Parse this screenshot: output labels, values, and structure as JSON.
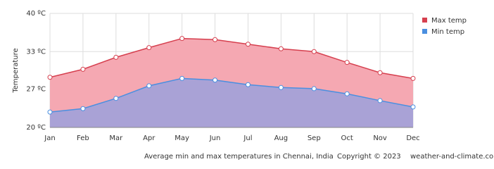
{
  "chart_data": {
    "type": "area",
    "y_label": "Temperature",
    "caption": "Average min and max temperatures in Chennai, India",
    "copyright": "Copyright © 2023",
    "source": "weather-and-climate.com",
    "categories": [
      "Jan",
      "Feb",
      "Mar",
      "Apr",
      "May",
      "Jun",
      "Jul",
      "Aug",
      "Sep",
      "Oct",
      "Nov",
      "Dec"
    ],
    "series": [
      {
        "name": "Max temp",
        "color": "#d6404f",
        "fill": "#f5a8b2",
        "values": [
          28.8,
          30.2,
          32.3,
          34.0,
          35.6,
          35.4,
          34.6,
          33.8,
          33.3,
          31.4,
          29.6,
          28.6
        ]
      },
      {
        "name": "Min temp",
        "color": "#4a8fe0",
        "fill": "#a9a2d6",
        "values": [
          22.7,
          23.3,
          25.1,
          27.3,
          28.6,
          28.3,
          27.5,
          27.0,
          26.8,
          25.9,
          24.7,
          23.6
        ]
      }
    ],
    "ylim": [
      20,
      40
    ],
    "yticks": [
      {
        "value": 20,
        "label": "20 ºC"
      },
      {
        "value": 26.7,
        "label": "27 ºC"
      },
      {
        "value": 33.3,
        "label": "33 ºC"
      },
      {
        "value": 40,
        "label": "40 ºC"
      }
    ],
    "grid": true
  }
}
